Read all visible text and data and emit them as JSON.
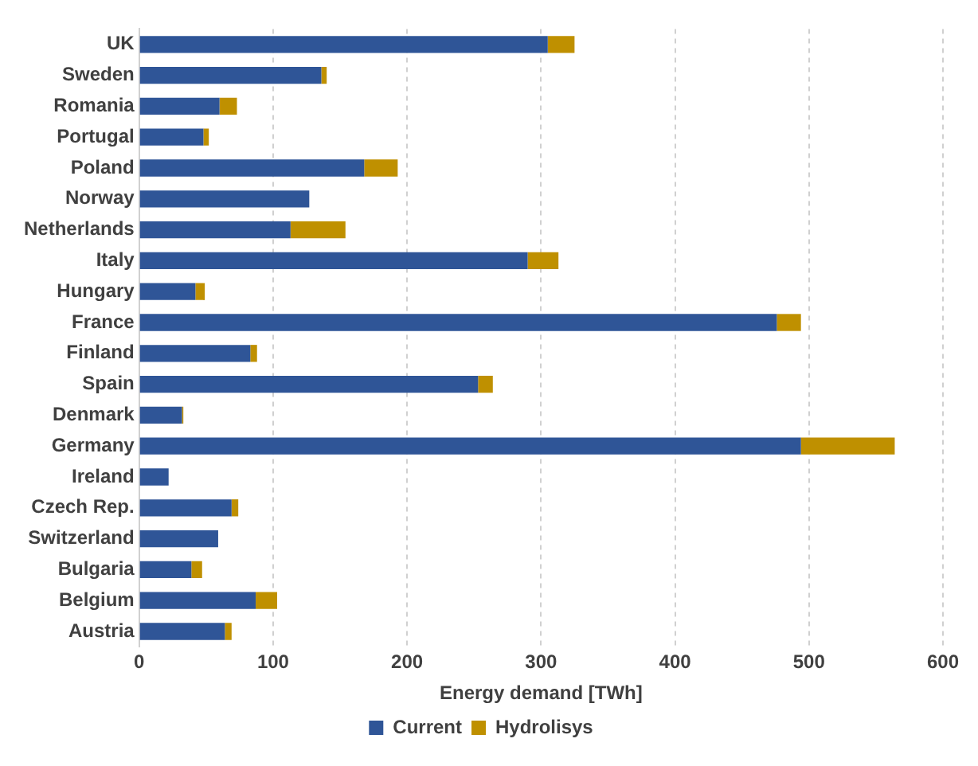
{
  "chart_data": {
    "type": "bar",
    "orientation": "horizontal",
    "stacked": true,
    "xlabel": "Energy demand [TWh]",
    "categories": [
      "UK",
      "Sweden",
      "Romania",
      "Portugal",
      "Poland",
      "Norway",
      "Netherlands",
      "Italy",
      "Hungary",
      "France",
      "Finland",
      "Spain",
      "Denmark",
      "Germany",
      "Ireland",
      "Czech Rep.",
      "Switzerland",
      "Bulgaria",
      "Belgium",
      "Austria"
    ],
    "series": [
      {
        "name": "Current",
        "color": "#2f5597",
        "values": [
          305,
          136,
          60,
          48,
          168,
          127,
          113,
          290,
          42,
          476,
          83,
          253,
          32,
          494,
          22,
          69,
          59,
          39,
          87,
          64
        ]
      },
      {
        "name": "Hydrolisys",
        "color": "#bf9000",
        "values": [
          20,
          4,
          13,
          4,
          25,
          0,
          41,
          23,
          7,
          18,
          5,
          11,
          1,
          70,
          0,
          5,
          0,
          8,
          16,
          5
        ]
      }
    ],
    "xlim": [
      0,
      600
    ],
    "xticks": [
      0,
      100,
      200,
      300,
      400,
      500,
      600
    ],
    "grid": "x",
    "legend": "bottom"
  }
}
